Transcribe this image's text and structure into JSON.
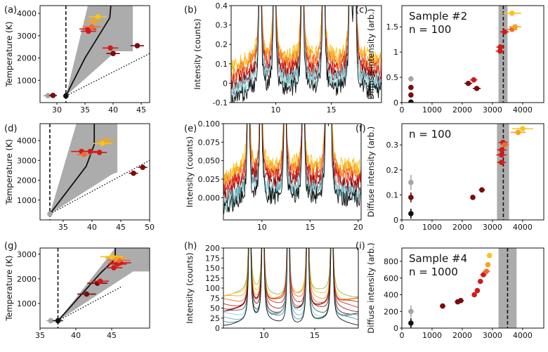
{
  "figure": {
    "panel_labels": [
      "(a)",
      "(b)",
      "(c)",
      "(d)",
      "(e)",
      "(f)",
      "(g)",
      "(h)",
      "(i)"
    ]
  },
  "colors": {
    "gray": "#a5a5a5",
    "black": "#111111",
    "darkred": "#7a0c0c",
    "red": "#d21a1a",
    "orange": "#f36b2a",
    "amber": "#f7a21d",
    "gold": "#f9c21d",
    "band": "#9e9e9e"
  },
  "chart_data": [
    {
      "id": "a",
      "type": "scatter",
      "title": "",
      "xlabel": "",
      "ylabel": "Temperature (K)",
      "xlim": [
        27,
        46.5
      ],
      "ylim": [
        0,
        4350
      ],
      "xticks": [
        30,
        35,
        40,
        45
      ],
      "yticks": [
        1000,
        2000,
        3000,
        4000
      ],
      "vline": 31.6,
      "shade": {
        "x": [
          31.6,
          35.5,
          43.5,
          43.5,
          40.5
        ],
        "y": [
          300,
          4350,
          4350,
          2300,
          2300
        ]
      },
      "solid": {
        "x": [
          31.6,
          35,
          39.4,
          39.6
        ],
        "y": [
          300,
          2000,
          3800,
          4350
        ]
      },
      "dotted": {
        "x": [
          31.6,
          46.5
        ],
        "y": [
          300,
          2200
        ]
      },
      "points": [
        {
          "x": 28.4,
          "y": 310,
          "xerr": 0.8,
          "c": "gray"
        },
        {
          "x": 29.3,
          "y": 320,
          "xerr": 0.7,
          "c": "darkred"
        },
        {
          "x": 31.6,
          "y": 300,
          "xerr": 0.4,
          "c": "black"
        },
        {
          "x": 35.5,
          "y": 3300,
          "xerr": 1.5,
          "c": "red"
        },
        {
          "x": 36.2,
          "y": 3400,
          "xerr": 1.6,
          "c": "orange"
        },
        {
          "x": 36.6,
          "y": 3650,
          "xerr": 1.8,
          "c": "amber"
        },
        {
          "x": 37.3,
          "y": 3850,
          "xerr": 1.6,
          "c": "gold"
        },
        {
          "x": 35.6,
          "y": 3200,
          "xerr": 1.4,
          "c": "red"
        },
        {
          "x": 39.5,
          "y": 2450,
          "xerr": 1.4,
          "c": "red"
        },
        {
          "x": 40.0,
          "y": 2200,
          "xerr": 1.2,
          "c": "darkred"
        },
        {
          "x": 44.3,
          "y": 2550,
          "xerr": 1.2,
          "c": "darkred"
        }
      ]
    },
    {
      "id": "b",
      "type": "line",
      "title": "",
      "xlabel": "",
      "ylabel": "Intensity (counts)",
      "xlim": [
        6,
        19.5
      ],
      "ylim": [
        -0.1,
        0.4
      ],
      "xticks": [
        10,
        15
      ],
      "yticks": [
        -0.1,
        0.0,
        0.1,
        0.2,
        0.3,
        0.4
      ],
      "peaks": [
        8.6,
        9.9,
        12.4,
        14.3,
        16.7,
        17.1
      ],
      "series": [
        {
          "c": "#f9c21d",
          "base": 0.13
        },
        {
          "c": "#f7a21d",
          "base": 0.11
        },
        {
          "c": "#f36b2a",
          "base": 0.09
        },
        {
          "c": "#d21a1a",
          "base": 0.06
        },
        {
          "c": "#7a0c0c",
          "base": 0.03
        },
        {
          "c": "#6bb0b8",
          "base": 0.01
        },
        {
          "c": "#8fd0d8",
          "base": -0.01
        },
        {
          "c": "#111111",
          "base": -0.04
        }
      ]
    },
    {
      "id": "c",
      "type": "scatter",
      "title": "",
      "xlabel": "",
      "ylabel": "Diffuse intensity (arb.)",
      "annotation": [
        "Sample #2",
        "n = 100"
      ],
      "xlim": [
        0,
        4700
      ],
      "ylim": [
        0,
        1.92
      ],
      "xticks": [
        0,
        1000,
        2000,
        3000,
        4000
      ],
      "yticks": [
        0.0,
        0.5,
        1.0,
        1.5
      ],
      "vline": 3360,
      "vband": [
        3200,
        3500
      ],
      "points": [
        {
          "x": 300,
          "y": 0.47,
          "xerr": 0,
          "c": "gray"
        },
        {
          "x": 300,
          "y": 0.3,
          "xerr": 0,
          "c": "darkred"
        },
        {
          "x": 300,
          "y": 0.15,
          "xerr": 0,
          "c": "darkred"
        },
        {
          "x": 300,
          "y": 0.01,
          "xerr": 0,
          "c": "black"
        },
        {
          "x": 2200,
          "y": 0.38,
          "xerr": 130,
          "c": "darkred"
        },
        {
          "x": 2380,
          "y": 0.45,
          "xerr": 120,
          "c": "red"
        },
        {
          "x": 2480,
          "y": 0.28,
          "xerr": 130,
          "c": "darkred"
        },
        {
          "x": 3250,
          "y": 1.02,
          "xerr": 140,
          "c": "red"
        },
        {
          "x": 3260,
          "y": 1.1,
          "xerr": 130,
          "c": "red"
        },
        {
          "x": 3400,
          "y": 1.4,
          "xerr": 150,
          "c": "red"
        },
        {
          "x": 3650,
          "y": 1.45,
          "xerr": 170,
          "c": "orange"
        },
        {
          "x": 3750,
          "y": 1.5,
          "xerr": 200,
          "c": "amber"
        },
        {
          "x": 3650,
          "y": 1.77,
          "xerr": 300,
          "c": "gold"
        }
      ]
    },
    {
      "id": "d",
      "type": "scatter",
      "title": "",
      "xlabel": "",
      "ylabel": "Temperature (K)",
      "xlim": [
        31,
        50
      ],
      "ylim": [
        0,
        4850
      ],
      "xticks": [
        35,
        40,
        45,
        50
      ],
      "yticks": [
        1000,
        2000,
        3000,
        4000
      ],
      "vline": 32.7,
      "shade": {
        "x": [
          32.7,
          37.3,
          44.4,
          44.4,
          43.5
        ],
        "y": [
          300,
          4850,
          4850,
          2400,
          2300
        ]
      },
      "solid": {
        "x": [
          32.7,
          39,
          40.4,
          40.4
        ],
        "y": [
          300,
          2700,
          3800,
          4850
        ]
      },
      "dotted": {
        "x": [
          32.7,
          50
        ],
        "y": [
          300,
          3000
        ]
      },
      "points": [
        {
          "x": 32.7,
          "y": 300,
          "xerr": 0.4,
          "c": "gray"
        },
        {
          "x": 38.2,
          "y": 3450,
          "xerr": 1.8,
          "c": "red"
        },
        {
          "x": 39.7,
          "y": 3450,
          "xerr": 1.6,
          "c": "red"
        },
        {
          "x": 41.3,
          "y": 3400,
          "xerr": 1.3,
          "c": "red"
        },
        {
          "x": 38.6,
          "y": 3300,
          "xerr": 1.2,
          "c": "orange"
        },
        {
          "x": 42.6,
          "y": 4000,
          "xerr": 1.8,
          "c": "amber"
        },
        {
          "x": 41.8,
          "y": 3850,
          "xerr": 1.6,
          "c": "gold"
        },
        {
          "x": 47.2,
          "y": 2350,
          "xerr": 0.8,
          "c": "darkred"
        },
        {
          "x": 48.8,
          "y": 2650,
          "xerr": 0.8,
          "c": "darkred"
        }
      ]
    },
    {
      "id": "e",
      "type": "line",
      "title": "",
      "xlabel": "",
      "ylabel": "Intensity (counts)",
      "xlim": [
        6,
        20.3
      ],
      "ylim": [
        -0.03,
        0.1
      ],
      "xticks": [
        10,
        15,
        20
      ],
      "yticks": [
        0.0,
        0.025,
        0.05,
        0.075,
        0.1
      ],
      "ytick_labels": [
        "0.000",
        "0.025",
        "0.050",
        "0.075",
        "0.100"
      ],
      "peaks": [
        8.6,
        9.9,
        12.4,
        14.3,
        16.7,
        17.1
      ],
      "series": [
        {
          "c": "#f9c21d",
          "base": 0.042
        },
        {
          "c": "#f7a21d",
          "base": 0.036
        },
        {
          "c": "#f36b2a",
          "base": 0.03
        },
        {
          "c": "#d21a1a",
          "base": 0.024
        },
        {
          "c": "#7a0c0c",
          "base": 0.015
        },
        {
          "c": "#8fd0d8",
          "base": 0.008
        },
        {
          "c": "#6bb0b8",
          "base": 0.004
        },
        {
          "c": "#111111",
          "base": -0.002
        }
      ]
    },
    {
      "id": "f",
      "type": "scatter",
      "title": "",
      "xlabel": "",
      "ylabel": "Diffuse intensity (arb.)",
      "annotation": [
        "n = 100"
      ],
      "xlim": [
        0,
        4700
      ],
      "ylim": [
        0,
        0.385
      ],
      "xticks": [
        0,
        1000,
        2000,
        3000,
        4000
      ],
      "yticks": [
        0.0,
        0.1,
        0.2,
        0.3
      ],
      "vline": 3360,
      "vband": [
        3150,
        3550
      ],
      "points": [
        {
          "x": 300,
          "y": 0.15,
          "xerr": 0,
          "yerr": 0.03,
          "c": "gray"
        },
        {
          "x": 300,
          "y": 0.09,
          "xerr": 0,
          "yerr": 0.02,
          "c": "darkred"
        },
        {
          "x": 300,
          "y": 0.025,
          "xerr": 0,
          "yerr": 0.02,
          "c": "black"
        },
        {
          "x": 2350,
          "y": 0.09,
          "xerr": 80,
          "c": "darkred"
        },
        {
          "x": 2650,
          "y": 0.12,
          "xerr": 100,
          "c": "darkred"
        },
        {
          "x": 3300,
          "y": 0.23,
          "xerr": 150,
          "c": "red"
        },
        {
          "x": 3300,
          "y": 0.26,
          "xerr": 170,
          "c": "red"
        },
        {
          "x": 3310,
          "y": 0.28,
          "xerr": 160,
          "c": "red"
        },
        {
          "x": 3350,
          "y": 0.31,
          "xerr": 150,
          "c": "red"
        },
        {
          "x": 3400,
          "y": 0.3,
          "xerr": 130,
          "c": "orange"
        },
        {
          "x": 3850,
          "y": 0.35,
          "xerr": 250,
          "c": "amber"
        },
        {
          "x": 4000,
          "y": 0.365,
          "xerr": 350,
          "c": "gold"
        }
      ]
    },
    {
      "id": "g",
      "type": "scatter",
      "title": "",
      "xlabel": "",
      "ylabel": "Temperature (K)",
      "xlim": [
        35,
        50.3
      ],
      "ylim": [
        0,
        3250
      ],
      "xticks": [
        35,
        40,
        45
      ],
      "yticks": [
        1000,
        2000,
        3000
      ],
      "vline": 37.5,
      "shade": {
        "x": [
          37.5,
          45.5,
          50.3,
          50.3,
          48
        ],
        "y": [
          300,
          3250,
          3250,
          2300,
          2300
        ]
      },
      "solid": {
        "x": [
          37.5,
          43.5,
          45.5,
          45.5
        ],
        "y": [
          300,
          2250,
          2800,
          3250
        ]
      },
      "dotted": {
        "x": [
          37.5,
          46.5
        ],
        "y": [
          300,
          1700
        ]
      },
      "points": [
        {
          "x": 36.5,
          "y": 300,
          "xerr": 0.6,
          "c": "gray"
        },
        {
          "x": 37.5,
          "y": 300,
          "xerr": 0.7,
          "c": "black"
        },
        {
          "x": 41.5,
          "y": 1380,
          "xerr": 1.3,
          "c": "darkred"
        },
        {
          "x": 43.0,
          "y": 1820,
          "xerr": 1.4,
          "c": "darkred"
        },
        {
          "x": 43.4,
          "y": 1900,
          "xerr": 1.2,
          "c": "red"
        },
        {
          "x": 45.3,
          "y": 2450,
          "xerr": 1.2,
          "c": "red"
        },
        {
          "x": 45.8,
          "y": 2600,
          "xerr": 1.3,
          "c": "red"
        },
        {
          "x": 46.2,
          "y": 2650,
          "xerr": 1.5,
          "c": "red"
        },
        {
          "x": 46.0,
          "y": 2750,
          "xerr": 1.6,
          "c": "orange"
        },
        {
          "x": 45.6,
          "y": 2850,
          "xerr": 1.5,
          "c": "amber"
        },
        {
          "x": 45.0,
          "y": 2900,
          "xerr": 1.6,
          "c": "gold"
        }
      ]
    },
    {
      "id": "h",
      "type": "line",
      "title": "",
      "xlabel": "",
      "ylabel": "Intensity (counts)",
      "xlim": [
        6,
        19.3
      ],
      "ylim": [
        0,
        200
      ],
      "xticks": [
        10,
        15
      ],
      "yticks": [
        0,
        25,
        50,
        75,
        100,
        125,
        150,
        175,
        200
      ],
      "peaks": [
        8.6,
        9.9,
        12.4,
        14.3,
        16.7
      ],
      "series": [
        {
          "c": "#7fbf4d",
          "base": 85
        },
        {
          "c": "#f9c21d",
          "base": 78
        },
        {
          "c": "#f7a21d",
          "base": 72
        },
        {
          "c": "#f36b2a",
          "base": 66
        },
        {
          "c": "#d21a1a",
          "base": 60
        },
        {
          "c": "#c03030",
          "base": 54
        },
        {
          "c": "#a02020",
          "base": 48
        },
        {
          "c": "#7a0c0c",
          "base": 42
        },
        {
          "c": "#555555",
          "base": 35
        },
        {
          "c": "#8fd0d8",
          "base": 30
        },
        {
          "c": "#6bb0b8",
          "base": 25
        },
        {
          "c": "#4a9aa0",
          "base": 21
        },
        {
          "c": "#111111",
          "base": 14
        }
      ]
    },
    {
      "id": "i",
      "type": "scatter",
      "title": "",
      "xlabel": "",
      "ylabel": "Diffuse intensity (arb.)",
      "annotation": [
        "Sample #4",
        "n = 1000"
      ],
      "xlim": [
        0,
        4700
      ],
      "ylim": [
        0,
        960
      ],
      "xticks": [
        0,
        1000,
        2000,
        3000,
        4000
      ],
      "yticks": [
        0,
        200,
        400,
        600,
        800
      ],
      "vline": 3500,
      "vband": [
        3200,
        3800
      ],
      "points": [
        {
          "x": 300,
          "y": 200,
          "xerr": 0,
          "yerr": 70,
          "c": "gray"
        },
        {
          "x": 300,
          "y": 60,
          "xerr": 0,
          "yerr": 60,
          "c": "black"
        },
        {
          "x": 1350,
          "y": 265,
          "xerr": 90,
          "yerr": 30,
          "c": "darkred"
        },
        {
          "x": 1850,
          "y": 315,
          "xerr": 100,
          "yerr": 25,
          "c": "darkred"
        },
        {
          "x": 1950,
          "y": 330,
          "xerr": 100,
          "yerr": 25,
          "c": "darkred"
        },
        {
          "x": 2400,
          "y": 400,
          "xerr": 70,
          "c": "red"
        },
        {
          "x": 2500,
          "y": 450,
          "xerr": 80,
          "c": "red"
        },
        {
          "x": 2600,
          "y": 560,
          "xerr": 90,
          "c": "red"
        },
        {
          "x": 2700,
          "y": 640,
          "xerr": 100,
          "c": "red"
        },
        {
          "x": 2800,
          "y": 680,
          "xerr": 120,
          "c": "orange"
        },
        {
          "x": 2850,
          "y": 760,
          "xerr": 60,
          "c": "amber"
        },
        {
          "x": 2900,
          "y": 870,
          "xerr": 40,
          "c": "gold"
        }
      ]
    }
  ]
}
